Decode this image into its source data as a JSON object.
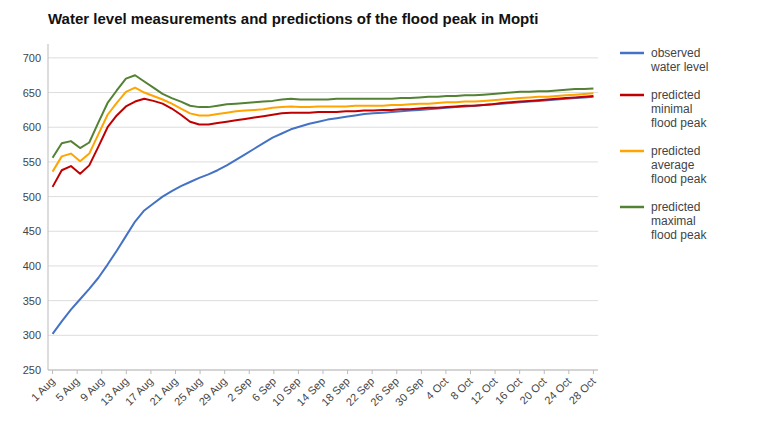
{
  "chart_data": {
    "type": "line",
    "title": "Water level measurements and predictions of the flood peak in Mopti",
    "x": [
      0,
      1,
      2,
      3,
      4,
      5,
      6,
      7,
      8,
      9,
      10,
      11,
      12,
      13,
      14,
      15,
      16,
      17,
      18,
      19,
      20,
      21,
      22,
      23,
      24,
      25,
      26,
      27,
      28,
      29,
      30,
      31,
      32,
      33,
      34,
      35,
      36,
      37,
      38,
      39,
      40,
      41,
      42,
      43,
      44,
      45,
      46,
      47,
      48,
      49,
      50,
      51,
      52,
      53,
      54,
      55,
      56,
      57,
      58,
      59
    ],
    "xlim": [
      -0.5,
      59.5
    ],
    "xticks": [
      {
        "value": 0,
        "label": "1 Aug"
      },
      {
        "value": 2.681818181818182,
        "label": "5 Aug"
      },
      {
        "value": 5.363636363636363,
        "label": "9 Aug"
      },
      {
        "value": 8.045454545454545,
        "label": "13 Aug"
      },
      {
        "value": 10.727272727272727,
        "label": "17 Aug"
      },
      {
        "value": 13.409090909090908,
        "label": "21 Aug"
      },
      {
        "value": 16.09090909090909,
        "label": "25 Aug"
      },
      {
        "value": 18.772727272727273,
        "label": "29 Aug"
      },
      {
        "value": 21.454545454545453,
        "label": "2 Sep"
      },
      {
        "value": 24.136363636363637,
        "label": "6 Sep"
      },
      {
        "value": 26.818181818181817,
        "label": "10 Sep"
      },
      {
        "value": 29.5,
        "label": "14 Sep"
      },
      {
        "value": 32.18181818181818,
        "label": "18 Sep"
      },
      {
        "value": 34.86363636363637,
        "label": "22 Sep"
      },
      {
        "value": 37.54545454545455,
        "label": "26 Sep"
      },
      {
        "value": 40.22727272727273,
        "label": "30 Sep"
      },
      {
        "value": 42.90909090909091,
        "label": "4 Oct"
      },
      {
        "value": 45.59090909090909,
        "label": "8 Oct"
      },
      {
        "value": 48.27272727272727,
        "label": "12 Oct"
      },
      {
        "value": 50.95454545454545,
        "label": "16 Oct"
      },
      {
        "value": 53.63636363636363,
        "label": "20 Oct"
      },
      {
        "value": 56.31818181818182,
        "label": "24 Oct"
      },
      {
        "value": 59,
        "label": "28 Oct"
      }
    ],
    "ylim": [
      250,
      720
    ],
    "yticks": [
      250,
      300,
      350,
      400,
      450,
      500,
      550,
      600,
      650,
      700
    ],
    "grid": true,
    "legend": "right",
    "series": [
      {
        "name": "observed\nwater level",
        "color": "#4472C4",
        "values": [
          302,
          320,
          337,
          352,
          367,
          383,
          402,
          422,
          443,
          464,
          480,
          490,
          500,
          508,
          515,
          521,
          527,
          532,
          538,
          545,
          553,
          561,
          569,
          577,
          585,
          591,
          597,
          601,
          605,
          608,
          611,
          613,
          615,
          617,
          619,
          620,
          621,
          622,
          623,
          624,
          625,
          626,
          627,
          628,
          629,
          630,
          631,
          632,
          633,
          634,
          635,
          636,
          637,
          638,
          639,
          640,
          641,
          642,
          643,
          644
        ]
      },
      {
        "name": "predicted\nminimal\nflood peak",
        "color": "#C00000",
        "values": [
          514,
          538,
          544,
          533,
          545,
          572,
          600,
          617,
          630,
          637,
          641,
          638,
          634,
          627,
          618,
          608,
          604,
          604,
          606,
          608,
          610,
          612,
          614,
          616,
          618,
          620,
          621,
          621,
          621,
          622,
          622,
          622,
          623,
          623,
          624,
          624,
          625,
          625,
          626,
          626,
          627,
          628,
          628,
          629,
          630,
          631,
          631,
          632,
          633,
          635,
          636,
          637,
          638,
          639,
          640,
          641,
          642,
          643,
          644,
          645
        ]
      },
      {
        "name": "predicted\naverage\nflood peak",
        "color": "#FFA500",
        "values": [
          536,
          558,
          562,
          551,
          562,
          590,
          618,
          635,
          651,
          657,
          650,
          645,
          640,
          634,
          627,
          620,
          617,
          617,
          619,
          621,
          623,
          624,
          625,
          626,
          628,
          629,
          630,
          629,
          629,
          630,
          630,
          630,
          630,
          631,
          631,
          631,
          631,
          632,
          632,
          633,
          634,
          634,
          635,
          636,
          636,
          637,
          637,
          638,
          639,
          640,
          641,
          642,
          643,
          644,
          644,
          645,
          646,
          647,
          648,
          649
        ]
      },
      {
        "name": "predicted\nmaximal\nflood peak",
        "color": "#548235",
        "values": [
          556,
          577,
          580,
          570,
          578,
          607,
          635,
          653,
          670,
          675,
          666,
          657,
          648,
          642,
          637,
          631,
          629,
          629,
          631,
          633,
          634,
          635,
          636,
          637,
          638,
          640,
          641,
          640,
          640,
          640,
          640,
          641,
          641,
          641,
          641,
          641,
          641,
          641,
          642,
          642,
          643,
          644,
          644,
          645,
          645,
          646,
          646,
          647,
          648,
          649,
          650,
          651,
          651,
          652,
          652,
          653,
          654,
          655,
          655,
          656
        ]
      }
    ]
  }
}
